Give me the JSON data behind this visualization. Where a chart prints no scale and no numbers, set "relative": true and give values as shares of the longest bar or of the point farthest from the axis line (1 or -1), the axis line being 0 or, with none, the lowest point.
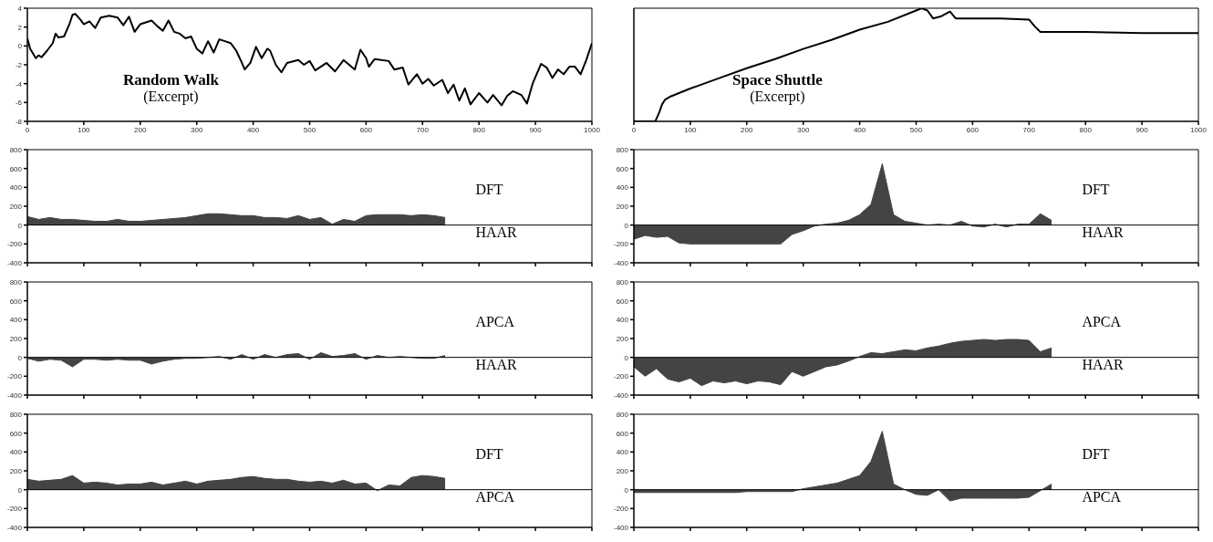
{
  "chart_data": [
    {
      "type": "line",
      "title": "Random Walk",
      "subtitle": "(Excerpt)",
      "x": [
        0,
        5,
        15,
        20,
        25,
        35,
        45,
        50,
        55,
        65,
        75,
        80,
        85,
        95,
        100,
        110,
        120,
        130,
        145,
        160,
        170,
        180,
        190,
        200,
        210,
        220,
        230,
        240,
        250,
        260,
        270,
        280,
        290,
        300,
        310,
        320,
        330,
        340,
        350,
        360,
        370,
        380,
        385,
        395,
        405,
        415,
        425,
        430,
        440,
        450,
        460,
        480,
        490,
        500,
        510,
        530,
        545,
        560,
        570,
        580,
        590,
        600,
        605,
        615,
        640,
        650,
        665,
        675,
        690,
        700,
        710,
        720,
        735,
        745,
        755,
        765,
        775,
        785,
        800,
        815,
        825,
        840,
        850,
        860,
        875,
        885,
        895,
        910,
        920,
        930,
        940,
        950,
        960,
        970,
        980,
        990,
        1000
      ],
      "series": [
        {
          "color": "#000000",
          "values": [
            0.8,
            -0.3,
            -1.3,
            -1.0,
            -1.2,
            -0.5,
            0.3,
            1.3,
            0.9,
            1.0,
            2.4,
            3.3,
            3.4,
            2.7,
            2.3,
            2.6,
            1.9,
            3.0,
            3.2,
            3.0,
            2.2,
            3.1,
            1.5,
            2.3,
            2.5,
            2.7,
            2.1,
            1.6,
            2.7,
            1.5,
            1.3,
            0.8,
            1.0,
            -0.3,
            -0.8,
            0.5,
            -0.7,
            0.7,
            0.5,
            0.3,
            -0.5,
            -1.8,
            -2.5,
            -1.8,
            -0.1,
            -1.3,
            -0.3,
            -0.5,
            -2.0,
            -2.8,
            -1.8,
            -1.5,
            -2.0,
            -1.6,
            -2.6,
            -1.8,
            -2.7,
            -1.5,
            -2.0,
            -2.5,
            -0.4,
            -1.3,
            -2.2,
            -1.4,
            -1.6,
            -2.5,
            -2.3,
            -4.1,
            -3.0,
            -4.0,
            -3.5,
            -4.2,
            -3.6,
            -5.0,
            -4.1,
            -5.8,
            -4.5,
            -6.2,
            -5.0,
            -6.0,
            -5.2,
            -6.3,
            -5.3,
            -4.8,
            -5.2,
            -6.1,
            -4.0,
            -1.9,
            -2.3,
            -3.4,
            -2.5,
            -3.0,
            -2.2,
            -2.2,
            -3.0,
            -1.5,
            0.3
          ]
        }
      ],
      "xlim": [
        0,
        1000
      ],
      "xticks": [
        0,
        100,
        200,
        300,
        400,
        500,
        600,
        700,
        800,
        900,
        1000
      ],
      "ylim": [
        -8,
        4
      ],
      "yticks": [
        -8,
        -6,
        -4,
        -2,
        0,
        2,
        4
      ],
      "marker": "none"
    },
    {
      "type": "line",
      "title": "Space Shuttle",
      "subtitle": "(Excerpt)",
      "relative": true,
      "tick_labels": "x",
      "x": [
        0,
        38,
        45,
        50,
        55,
        65,
        100,
        150,
        200,
        250,
        300,
        350,
        400,
        450,
        500,
        510,
        520,
        530,
        545,
        560,
        570,
        600,
        650,
        700,
        710,
        720,
        750,
        800,
        900,
        1000
      ],
      "series": [
        {
          "color": "#000000",
          "values": [
            0,
            0,
            0.08,
            0.15,
            0.19,
            0.22,
            0.29,
            0.38,
            0.47,
            0.55,
            0.64,
            0.72,
            0.81,
            0.88,
            0.98,
            1.0,
            0.98,
            0.91,
            0.93,
            0.97,
            0.91,
            0.91,
            0.91,
            0.9,
            0.84,
            0.79,
            0.79,
            0.79,
            0.78,
            0.78
          ]
        }
      ],
      "xlim": [
        0,
        1000
      ],
      "xticks": [
        0,
        100,
        200,
        300,
        400,
        500,
        600,
        700,
        800,
        900,
        1000
      ],
      "marker": "none"
    },
    {
      "type": "area",
      "tick_labels": "y",
      "annotations": [
        "DFT",
        "HAAR"
      ],
      "x": [
        0,
        20,
        40,
        60,
        80,
        100,
        120,
        140,
        160,
        180,
        200,
        220,
        240,
        260,
        280,
        300,
        320,
        340,
        360,
        380,
        400,
        420,
        440,
        460,
        480,
        500,
        520,
        540,
        560,
        580,
        600,
        620,
        640,
        660,
        680,
        700,
        720,
        740
      ],
      "series": [
        {
          "color": "#444444",
          "values": [
            90,
            60,
            80,
            60,
            60,
            50,
            40,
            40,
            60,
            40,
            40,
            50,
            60,
            70,
            80,
            100,
            120,
            120,
            110,
            100,
            100,
            80,
            80,
            70,
            100,
            60,
            80,
            10,
            60,
            40,
            100,
            110,
            110,
            110,
            100,
            110,
            100,
            80
          ]
        }
      ],
      "xlim": [
        0,
        1000
      ],
      "xticks": [
        {
          "value": 0,
          "label": null
        },
        {
          "value": 100,
          "label": null
        },
        {
          "value": 200,
          "label": null
        },
        {
          "value": 300,
          "label": null
        },
        {
          "value": 400,
          "label": null
        },
        {
          "value": 500,
          "label": null
        },
        {
          "value": 600,
          "label": null
        },
        {
          "value": 700,
          "label": null
        },
        {
          "value": 800,
          "label": null
        },
        {
          "value": 900,
          "label": null
        },
        {
          "value": 1000,
          "label": null
        }
      ],
      "ylim": [
        -400,
        800
      ],
      "yticks": [
        -400,
        -200,
        0,
        200,
        400,
        600,
        800
      ],
      "ref_lines": [
        {
          "axis": "y",
          "value": 0
        }
      ]
    },
    {
      "type": "area",
      "tick_labels": "y",
      "annotations": [
        "DFT",
        "HAAR"
      ],
      "x": [
        0,
        20,
        40,
        60,
        80,
        100,
        120,
        140,
        160,
        180,
        200,
        220,
        240,
        260,
        280,
        300,
        320,
        340,
        360,
        380,
        400,
        420,
        440,
        460,
        480,
        500,
        520,
        540,
        560,
        580,
        600,
        620,
        640,
        660,
        680,
        700,
        720,
        740
      ],
      "series": [
        {
          "color": "#444444",
          "values": [
            -150,
            -110,
            -130,
            -120,
            -190,
            -200,
            -200,
            -200,
            -200,
            -200,
            -200,
            -200,
            -200,
            -200,
            -100,
            -60,
            -10,
            10,
            20,
            50,
            110,
            220,
            650,
            110,
            40,
            20,
            0,
            10,
            0,
            40,
            -10,
            -20,
            10,
            -20,
            10,
            10,
            120,
            50
          ]
        }
      ],
      "xlim": [
        0,
        1000
      ],
      "xticks": [
        {
          "value": 0,
          "label": null
        },
        {
          "value": 100,
          "label": null
        },
        {
          "value": 200,
          "label": null
        },
        {
          "value": 300,
          "label": null
        },
        {
          "value": 400,
          "label": null
        },
        {
          "value": 500,
          "label": null
        },
        {
          "value": 600,
          "label": null
        },
        {
          "value": 700,
          "label": null
        },
        {
          "value": 800,
          "label": null
        },
        {
          "value": 900,
          "label": null
        },
        {
          "value": 1000,
          "label": null
        }
      ],
      "ylim": [
        -400,
        800
      ],
      "yticks": [
        -400,
        -200,
        0,
        200,
        400,
        600,
        800
      ],
      "ref_lines": [
        {
          "axis": "y",
          "value": 0
        }
      ]
    },
    {
      "type": "area",
      "tick_labels": "y",
      "annotations": [
        "APCA",
        "HAAR"
      ],
      "x": [
        0,
        20,
        40,
        60,
        80,
        100,
        120,
        140,
        160,
        180,
        200,
        220,
        240,
        260,
        280,
        300,
        320,
        340,
        360,
        380,
        400,
        420,
        440,
        460,
        480,
        500,
        520,
        540,
        560,
        580,
        600,
        620,
        640,
        660,
        680,
        700,
        720,
        740
      ],
      "series": [
        {
          "color": "#444444",
          "values": [
            -10,
            -40,
            -20,
            -30,
            -100,
            -20,
            -20,
            -30,
            -20,
            -30,
            -30,
            -70,
            -40,
            -20,
            -10,
            -10,
            0,
            10,
            -20,
            30,
            -20,
            30,
            0,
            30,
            40,
            -20,
            50,
            10,
            20,
            40,
            -20,
            20,
            0,
            10,
            0,
            -10,
            -10,
            20
          ]
        }
      ],
      "xlim": [
        0,
        1000
      ],
      "xticks": [
        {
          "value": 0,
          "label": null
        },
        {
          "value": 100,
          "label": null
        },
        {
          "value": 200,
          "label": null
        },
        {
          "value": 300,
          "label": null
        },
        {
          "value": 400,
          "label": null
        },
        {
          "value": 500,
          "label": null
        },
        {
          "value": 600,
          "label": null
        },
        {
          "value": 700,
          "label": null
        },
        {
          "value": 800,
          "label": null
        },
        {
          "value": 900,
          "label": null
        },
        {
          "value": 1000,
          "label": null
        }
      ],
      "ylim": [
        -400,
        800
      ],
      "yticks": [
        -400,
        -200,
        0,
        200,
        400,
        600,
        800
      ],
      "ref_lines": [
        {
          "axis": "y",
          "value": 0
        }
      ]
    },
    {
      "type": "area",
      "tick_labels": "y",
      "annotations": [
        "APCA",
        "HAAR"
      ],
      "x": [
        0,
        20,
        40,
        60,
        80,
        100,
        120,
        140,
        160,
        180,
        200,
        220,
        240,
        260,
        280,
        300,
        320,
        340,
        360,
        380,
        400,
        420,
        440,
        460,
        480,
        500,
        520,
        540,
        560,
        580,
        600,
        620,
        640,
        660,
        680,
        700,
        720,
        740
      ],
      "series": [
        {
          "color": "#444444",
          "values": [
            -100,
            -200,
            -120,
            -230,
            -260,
            -220,
            -300,
            -250,
            -270,
            -250,
            -280,
            -250,
            -260,
            -290,
            -150,
            -200,
            -150,
            -100,
            -80,
            -40,
            10,
            50,
            40,
            60,
            80,
            70,
            100,
            120,
            150,
            170,
            180,
            190,
            180,
            190,
            190,
            180,
            60,
            100
          ]
        }
      ],
      "xlim": [
        0,
        1000
      ],
      "xticks": [
        {
          "value": 0,
          "label": null
        },
        {
          "value": 100,
          "label": null
        },
        {
          "value": 200,
          "label": null
        },
        {
          "value": 300,
          "label": null
        },
        {
          "value": 400,
          "label": null
        },
        {
          "value": 500,
          "label": null
        },
        {
          "value": 600,
          "label": null
        },
        {
          "value": 700,
          "label": null
        },
        {
          "value": 800,
          "label": null
        },
        {
          "value": 900,
          "label": null
        },
        {
          "value": 1000,
          "label": null
        }
      ],
      "ylim": [
        -400,
        800
      ],
      "yticks": [
        -400,
        -200,
        0,
        200,
        400,
        600,
        800
      ],
      "ref_lines": [
        {
          "axis": "y",
          "value": 0
        }
      ]
    },
    {
      "type": "area",
      "tick_labels": "y",
      "annotations": [
        "DFT",
        "APCA"
      ],
      "x": [
        0,
        20,
        40,
        60,
        80,
        100,
        120,
        140,
        160,
        180,
        200,
        220,
        240,
        260,
        280,
        300,
        320,
        340,
        360,
        380,
        400,
        420,
        440,
        460,
        480,
        500,
        520,
        540,
        560,
        580,
        600,
        620,
        640,
        660,
        680,
        700,
        720,
        740
      ],
      "series": [
        {
          "color": "#444444",
          "values": [
            110,
            90,
            100,
            110,
            150,
            70,
            80,
            70,
            50,
            60,
            60,
            80,
            50,
            70,
            90,
            60,
            90,
            100,
            110,
            130,
            140,
            120,
            110,
            110,
            90,
            80,
            90,
            70,
            100,
            60,
            70,
            -10,
            50,
            40,
            130,
            150,
            140,
            120
          ]
        }
      ],
      "xlim": [
        0,
        1000
      ],
      "xticks": [
        {
          "value": 0,
          "label": null
        },
        {
          "value": 100,
          "label": null
        },
        {
          "value": 200,
          "label": null
        },
        {
          "value": 300,
          "label": null
        },
        {
          "value": 400,
          "label": null
        },
        {
          "value": 500,
          "label": null
        },
        {
          "value": 600,
          "label": null
        },
        {
          "value": 700,
          "label": null
        },
        {
          "value": 800,
          "label": null
        },
        {
          "value": 900,
          "label": null
        },
        {
          "value": 1000,
          "label": null
        }
      ],
      "ylim": [
        -400,
        800
      ],
      "yticks": [
        -400,
        -200,
        0,
        200,
        400,
        600,
        800
      ],
      "ref_lines": [
        {
          "axis": "y",
          "value": 0
        }
      ]
    },
    {
      "type": "area",
      "tick_labels": "y",
      "annotations": [
        "DFT",
        "APCA"
      ],
      "x": [
        0,
        20,
        40,
        60,
        80,
        100,
        120,
        140,
        160,
        180,
        200,
        220,
        240,
        260,
        280,
        300,
        320,
        340,
        360,
        380,
        400,
        420,
        440,
        460,
        480,
        500,
        520,
        540,
        560,
        580,
        600,
        620,
        640,
        660,
        680,
        700,
        720,
        740
      ],
      "series": [
        {
          "color": "#444444",
          "values": [
            -30,
            -30,
            -30,
            -30,
            -30,
            -30,
            -30,
            -30,
            -30,
            -30,
            -20,
            -20,
            -20,
            -20,
            -20,
            10,
            30,
            50,
            70,
            110,
            150,
            300,
            620,
            60,
            0,
            -50,
            -60,
            0,
            -120,
            -90,
            -90,
            -90,
            -90,
            -90,
            -90,
            -80,
            -10,
            60
          ]
        }
      ],
      "xlim": [
        0,
        1000
      ],
      "xticks": [
        {
          "value": 0,
          "label": null
        },
        {
          "value": 100,
          "label": null
        },
        {
          "value": 200,
          "label": null
        },
        {
          "value": 300,
          "label": null
        },
        {
          "value": 400,
          "label": null
        },
        {
          "value": 500,
          "label": null
        },
        {
          "value": 600,
          "label": null
        },
        {
          "value": 700,
          "label": null
        },
        {
          "value": 800,
          "label": null
        },
        {
          "value": 900,
          "label": null
        },
        {
          "value": 1000,
          "label": null
        }
      ],
      "ylim": [
        -400,
        800
      ],
      "yticks": [
        -400,
        -200,
        0,
        200,
        400,
        600,
        800
      ],
      "ref_lines": [
        {
          "axis": "y",
          "value": 0
        }
      ]
    }
  ]
}
